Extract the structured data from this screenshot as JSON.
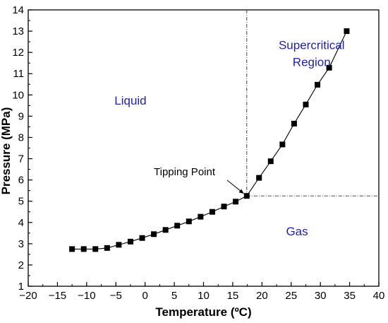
{
  "chart_data": {
    "type": "line",
    "xlabel": "Temperature  (ºC)",
    "ylabel": "Pressure  (MPa)",
    "xlim": [
      -20,
      40
    ],
    "ylim": [
      1,
      14
    ],
    "xticks": [
      -20,
      -15,
      -10,
      -5,
      0,
      5,
      10,
      15,
      20,
      25,
      30,
      35,
      40
    ],
    "yticks": [
      1,
      2,
      3,
      4,
      5,
      6,
      7,
      8,
      9,
      10,
      11,
      12,
      13,
      14
    ],
    "xtick_labels": [
      "−20",
      "−15",
      "−10",
      "−5",
      "0",
      "5",
      "10",
      "15",
      "20",
      "25",
      "30",
      "35",
      "40"
    ],
    "ytick_labels": [
      "1",
      "2",
      "3",
      "4",
      "5",
      "6",
      "7",
      "8",
      "9",
      "10",
      "11",
      "12",
      "13",
      "14"
    ],
    "grid": false,
    "marker": "square",
    "line_color": "#000000",
    "series": [
      {
        "x": [
          -12.5,
          -10.5,
          -8.5,
          -6.5,
          -4.5,
          -2.5,
          -0.5,
          1.5,
          3.5,
          5.5,
          7.5,
          9.5,
          11.5,
          13.5,
          15.5,
          17.4,
          19.5,
          21.5,
          23.5,
          25.5,
          27.5,
          29.5,
          31.5,
          34.5
        ],
        "y": [
          2.75,
          2.75,
          2.75,
          2.8,
          2.95,
          3.1,
          3.27,
          3.45,
          3.65,
          3.85,
          4.05,
          4.27,
          4.5,
          4.75,
          4.98,
          5.25,
          6.1,
          6.88,
          7.67,
          8.65,
          9.55,
          10.48,
          11.28,
          13.0
        ]
      }
    ],
    "reference_lines": {
      "vertical_x": 17.4,
      "horizontal_y": 5.25,
      "style": "dash-dot"
    },
    "region_labels": [
      {
        "text": "Liquid",
        "x": -2.5,
        "y": 9.55
      },
      {
        "text": "Supercritical",
        "x": 28.5,
        "y": 12.15
      },
      {
        "text": "Region",
        "x": 28.5,
        "y": 11.35
      },
      {
        "text": "Gas",
        "x": 26.0,
        "y": 3.4
      }
    ],
    "region_label_color": "#1f1fb4",
    "annotation": {
      "text": "Tipping Point",
      "x": 17.4,
      "y": 5.25
    }
  }
}
